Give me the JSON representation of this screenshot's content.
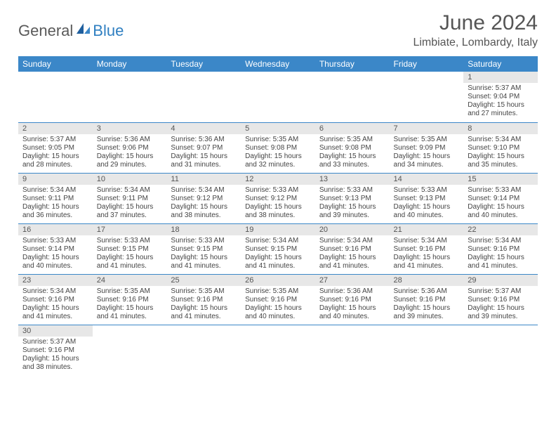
{
  "logo": {
    "part1": "General",
    "part2": "Blue"
  },
  "title": "June 2024",
  "location": "Limbiate, Lombardy, Italy",
  "colors": {
    "header_bg": "#3b87c8",
    "header_text": "#ffffff",
    "daynum_bg": "#e7e7e7",
    "cell_border": "#3b87c8",
    "title_color": "#555555",
    "body_text": "#444444",
    "logo_gray": "#5a5a5a",
    "logo_blue": "#2f7fc1"
  },
  "weekdays": [
    "Sunday",
    "Monday",
    "Tuesday",
    "Wednesday",
    "Thursday",
    "Friday",
    "Saturday"
  ],
  "weeks": [
    [
      null,
      null,
      null,
      null,
      null,
      null,
      {
        "n": "1",
        "sr": "5:37 AM",
        "ss": "9:04 PM",
        "dl": "15 hours and 27 minutes."
      }
    ],
    [
      {
        "n": "2",
        "sr": "5:37 AM",
        "ss": "9:05 PM",
        "dl": "15 hours and 28 minutes."
      },
      {
        "n": "3",
        "sr": "5:36 AM",
        "ss": "9:06 PM",
        "dl": "15 hours and 29 minutes."
      },
      {
        "n": "4",
        "sr": "5:36 AM",
        "ss": "9:07 PM",
        "dl": "15 hours and 31 minutes."
      },
      {
        "n": "5",
        "sr": "5:35 AM",
        "ss": "9:08 PM",
        "dl": "15 hours and 32 minutes."
      },
      {
        "n": "6",
        "sr": "5:35 AM",
        "ss": "9:08 PM",
        "dl": "15 hours and 33 minutes."
      },
      {
        "n": "7",
        "sr": "5:35 AM",
        "ss": "9:09 PM",
        "dl": "15 hours and 34 minutes."
      },
      {
        "n": "8",
        "sr": "5:34 AM",
        "ss": "9:10 PM",
        "dl": "15 hours and 35 minutes."
      }
    ],
    [
      {
        "n": "9",
        "sr": "5:34 AM",
        "ss": "9:11 PM",
        "dl": "15 hours and 36 minutes."
      },
      {
        "n": "10",
        "sr": "5:34 AM",
        "ss": "9:11 PM",
        "dl": "15 hours and 37 minutes."
      },
      {
        "n": "11",
        "sr": "5:34 AM",
        "ss": "9:12 PM",
        "dl": "15 hours and 38 minutes."
      },
      {
        "n": "12",
        "sr": "5:33 AM",
        "ss": "9:12 PM",
        "dl": "15 hours and 38 minutes."
      },
      {
        "n": "13",
        "sr": "5:33 AM",
        "ss": "9:13 PM",
        "dl": "15 hours and 39 minutes."
      },
      {
        "n": "14",
        "sr": "5:33 AM",
        "ss": "9:13 PM",
        "dl": "15 hours and 40 minutes."
      },
      {
        "n": "15",
        "sr": "5:33 AM",
        "ss": "9:14 PM",
        "dl": "15 hours and 40 minutes."
      }
    ],
    [
      {
        "n": "16",
        "sr": "5:33 AM",
        "ss": "9:14 PM",
        "dl": "15 hours and 40 minutes."
      },
      {
        "n": "17",
        "sr": "5:33 AM",
        "ss": "9:15 PM",
        "dl": "15 hours and 41 minutes."
      },
      {
        "n": "18",
        "sr": "5:33 AM",
        "ss": "9:15 PM",
        "dl": "15 hours and 41 minutes."
      },
      {
        "n": "19",
        "sr": "5:34 AM",
        "ss": "9:15 PM",
        "dl": "15 hours and 41 minutes."
      },
      {
        "n": "20",
        "sr": "5:34 AM",
        "ss": "9:16 PM",
        "dl": "15 hours and 41 minutes."
      },
      {
        "n": "21",
        "sr": "5:34 AM",
        "ss": "9:16 PM",
        "dl": "15 hours and 41 minutes."
      },
      {
        "n": "22",
        "sr": "5:34 AM",
        "ss": "9:16 PM",
        "dl": "15 hours and 41 minutes."
      }
    ],
    [
      {
        "n": "23",
        "sr": "5:34 AM",
        "ss": "9:16 PM",
        "dl": "15 hours and 41 minutes."
      },
      {
        "n": "24",
        "sr": "5:35 AM",
        "ss": "9:16 PM",
        "dl": "15 hours and 41 minutes."
      },
      {
        "n": "25",
        "sr": "5:35 AM",
        "ss": "9:16 PM",
        "dl": "15 hours and 41 minutes."
      },
      {
        "n": "26",
        "sr": "5:35 AM",
        "ss": "9:16 PM",
        "dl": "15 hours and 40 minutes."
      },
      {
        "n": "27",
        "sr": "5:36 AM",
        "ss": "9:16 PM",
        "dl": "15 hours and 40 minutes."
      },
      {
        "n": "28",
        "sr": "5:36 AM",
        "ss": "9:16 PM",
        "dl": "15 hours and 39 minutes."
      },
      {
        "n": "29",
        "sr": "5:37 AM",
        "ss": "9:16 PM",
        "dl": "15 hours and 39 minutes."
      }
    ],
    [
      {
        "n": "30",
        "sr": "5:37 AM",
        "ss": "9:16 PM",
        "dl": "15 hours and 38 minutes."
      },
      null,
      null,
      null,
      null,
      null,
      null
    ]
  ],
  "labels": {
    "sunrise": "Sunrise:",
    "sunset": "Sunset:",
    "daylight": "Daylight:"
  }
}
